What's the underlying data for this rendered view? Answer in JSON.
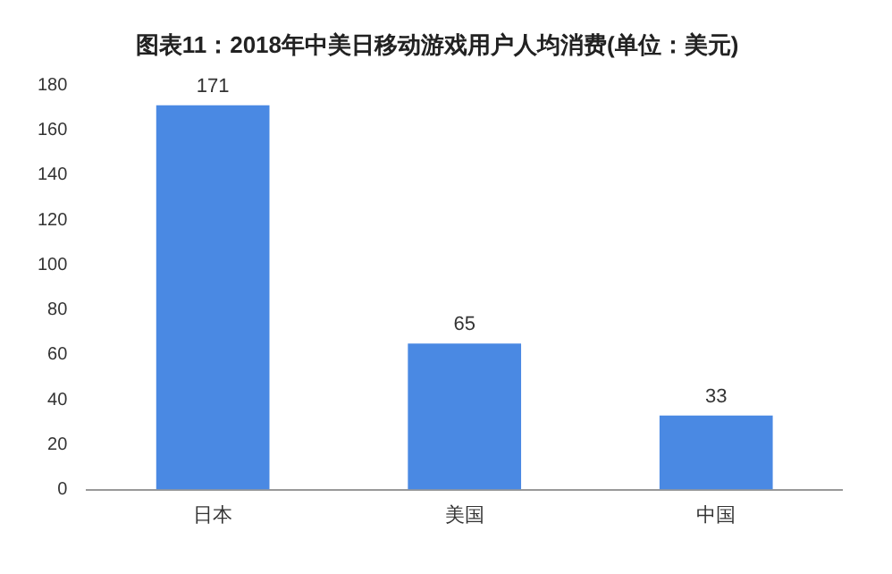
{
  "chart_data": {
    "type": "bar",
    "title": "图表11：2018年中美日移动游戏用户人均消费(单位：美元)",
    "categories": [
      "日本",
      "美国",
      "中国"
    ],
    "values": [
      171,
      65,
      33
    ],
    "color": "#4a89e3",
    "ylim": [
      0,
      180
    ],
    "yticks": [
      0,
      20,
      40,
      60,
      80,
      100,
      120,
      140,
      160,
      180
    ],
    "grid": false,
    "data_labels": true
  }
}
